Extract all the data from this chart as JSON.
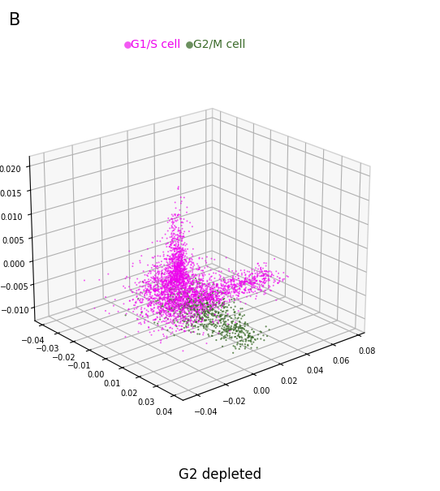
{
  "title": "G2 depleted",
  "panel_label": "B",
  "legend_g1s_label": "G1/S cell",
  "legend_g2m_label": "G2/M cell",
  "g1s_color": "#EE00EE",
  "g2m_color": "#3B6B2A",
  "elev": 22,
  "azim": 50,
  "seed": 42
}
